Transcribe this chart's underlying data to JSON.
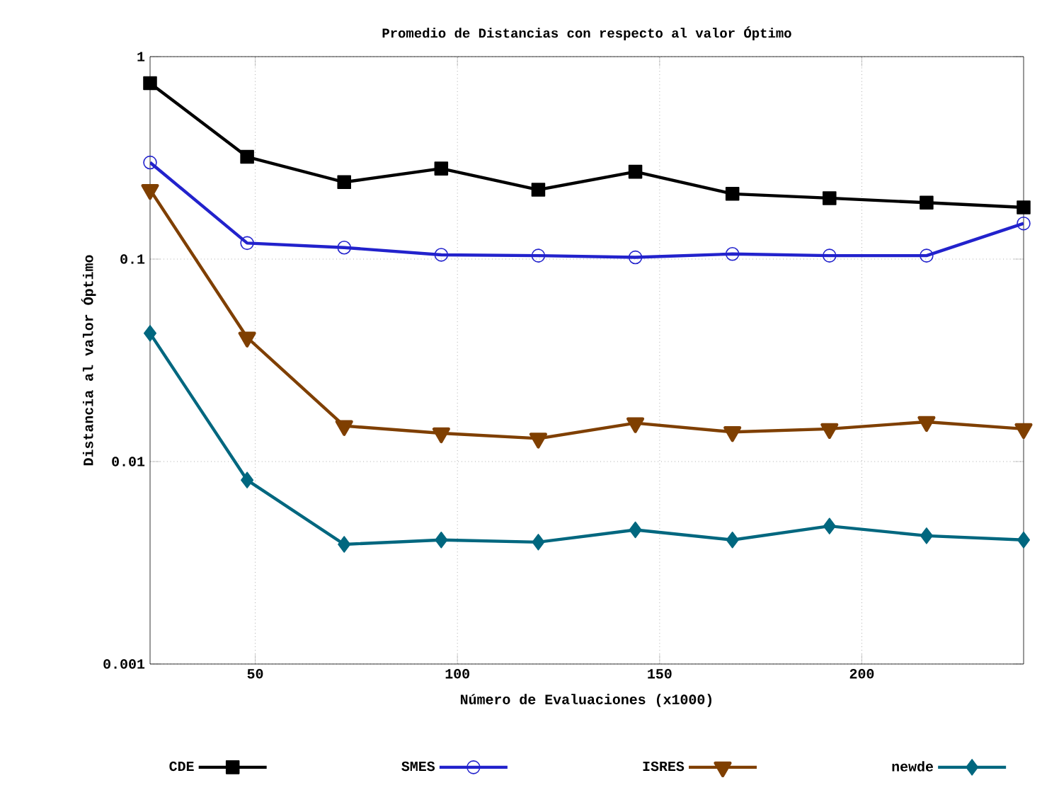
{
  "chart_data": {
    "type": "line",
    "title": "Promedio de Distancias con respecto al valor Óptimo",
    "xlabel": "Número de Evaluaciones (x1000)",
    "ylabel": "Distancia al valor Óptimo",
    "x": [
      24,
      48,
      72,
      96,
      120,
      144,
      168,
      192,
      216,
      240
    ],
    "series": [
      {
        "name": "CDE",
        "color": "#000000",
        "marker": "square",
        "values": [
          0.74,
          0.32,
          0.24,
          0.28,
          0.22,
          0.27,
          0.21,
          0.2,
          0.19,
          0.18
        ]
      },
      {
        "name": "SMES",
        "color": "#2222cc",
        "marker": "circle",
        "values": [
          0.3,
          0.12,
          0.114,
          0.105,
          0.104,
          0.102,
          0.106,
          0.104,
          0.104,
          0.15
        ]
      },
      {
        "name": "ISRES",
        "color": "#7f3f00",
        "marker": "triangle",
        "values": [
          0.22,
          0.041,
          0.015,
          0.0138,
          0.013,
          0.0155,
          0.014,
          0.0145,
          0.0157,
          0.0145
        ]
      },
      {
        "name": "newde",
        "color": "#00677f",
        "marker": "diamond",
        "values": [
          0.043,
          0.0081,
          0.0039,
          0.0041,
          0.004,
          0.0046,
          0.0041,
          0.0048,
          0.0043,
          0.0041
        ]
      }
    ],
    "xlim": [
      24,
      240
    ],
    "xticks": [
      50,
      100,
      150,
      200
    ],
    "ylim": [
      0.001,
      1
    ],
    "yticks": [
      0.001,
      0.01,
      0.1,
      1
    ],
    "log": "y",
    "grid": true,
    "legend": "bottom",
    "line_style": "solid"
  }
}
